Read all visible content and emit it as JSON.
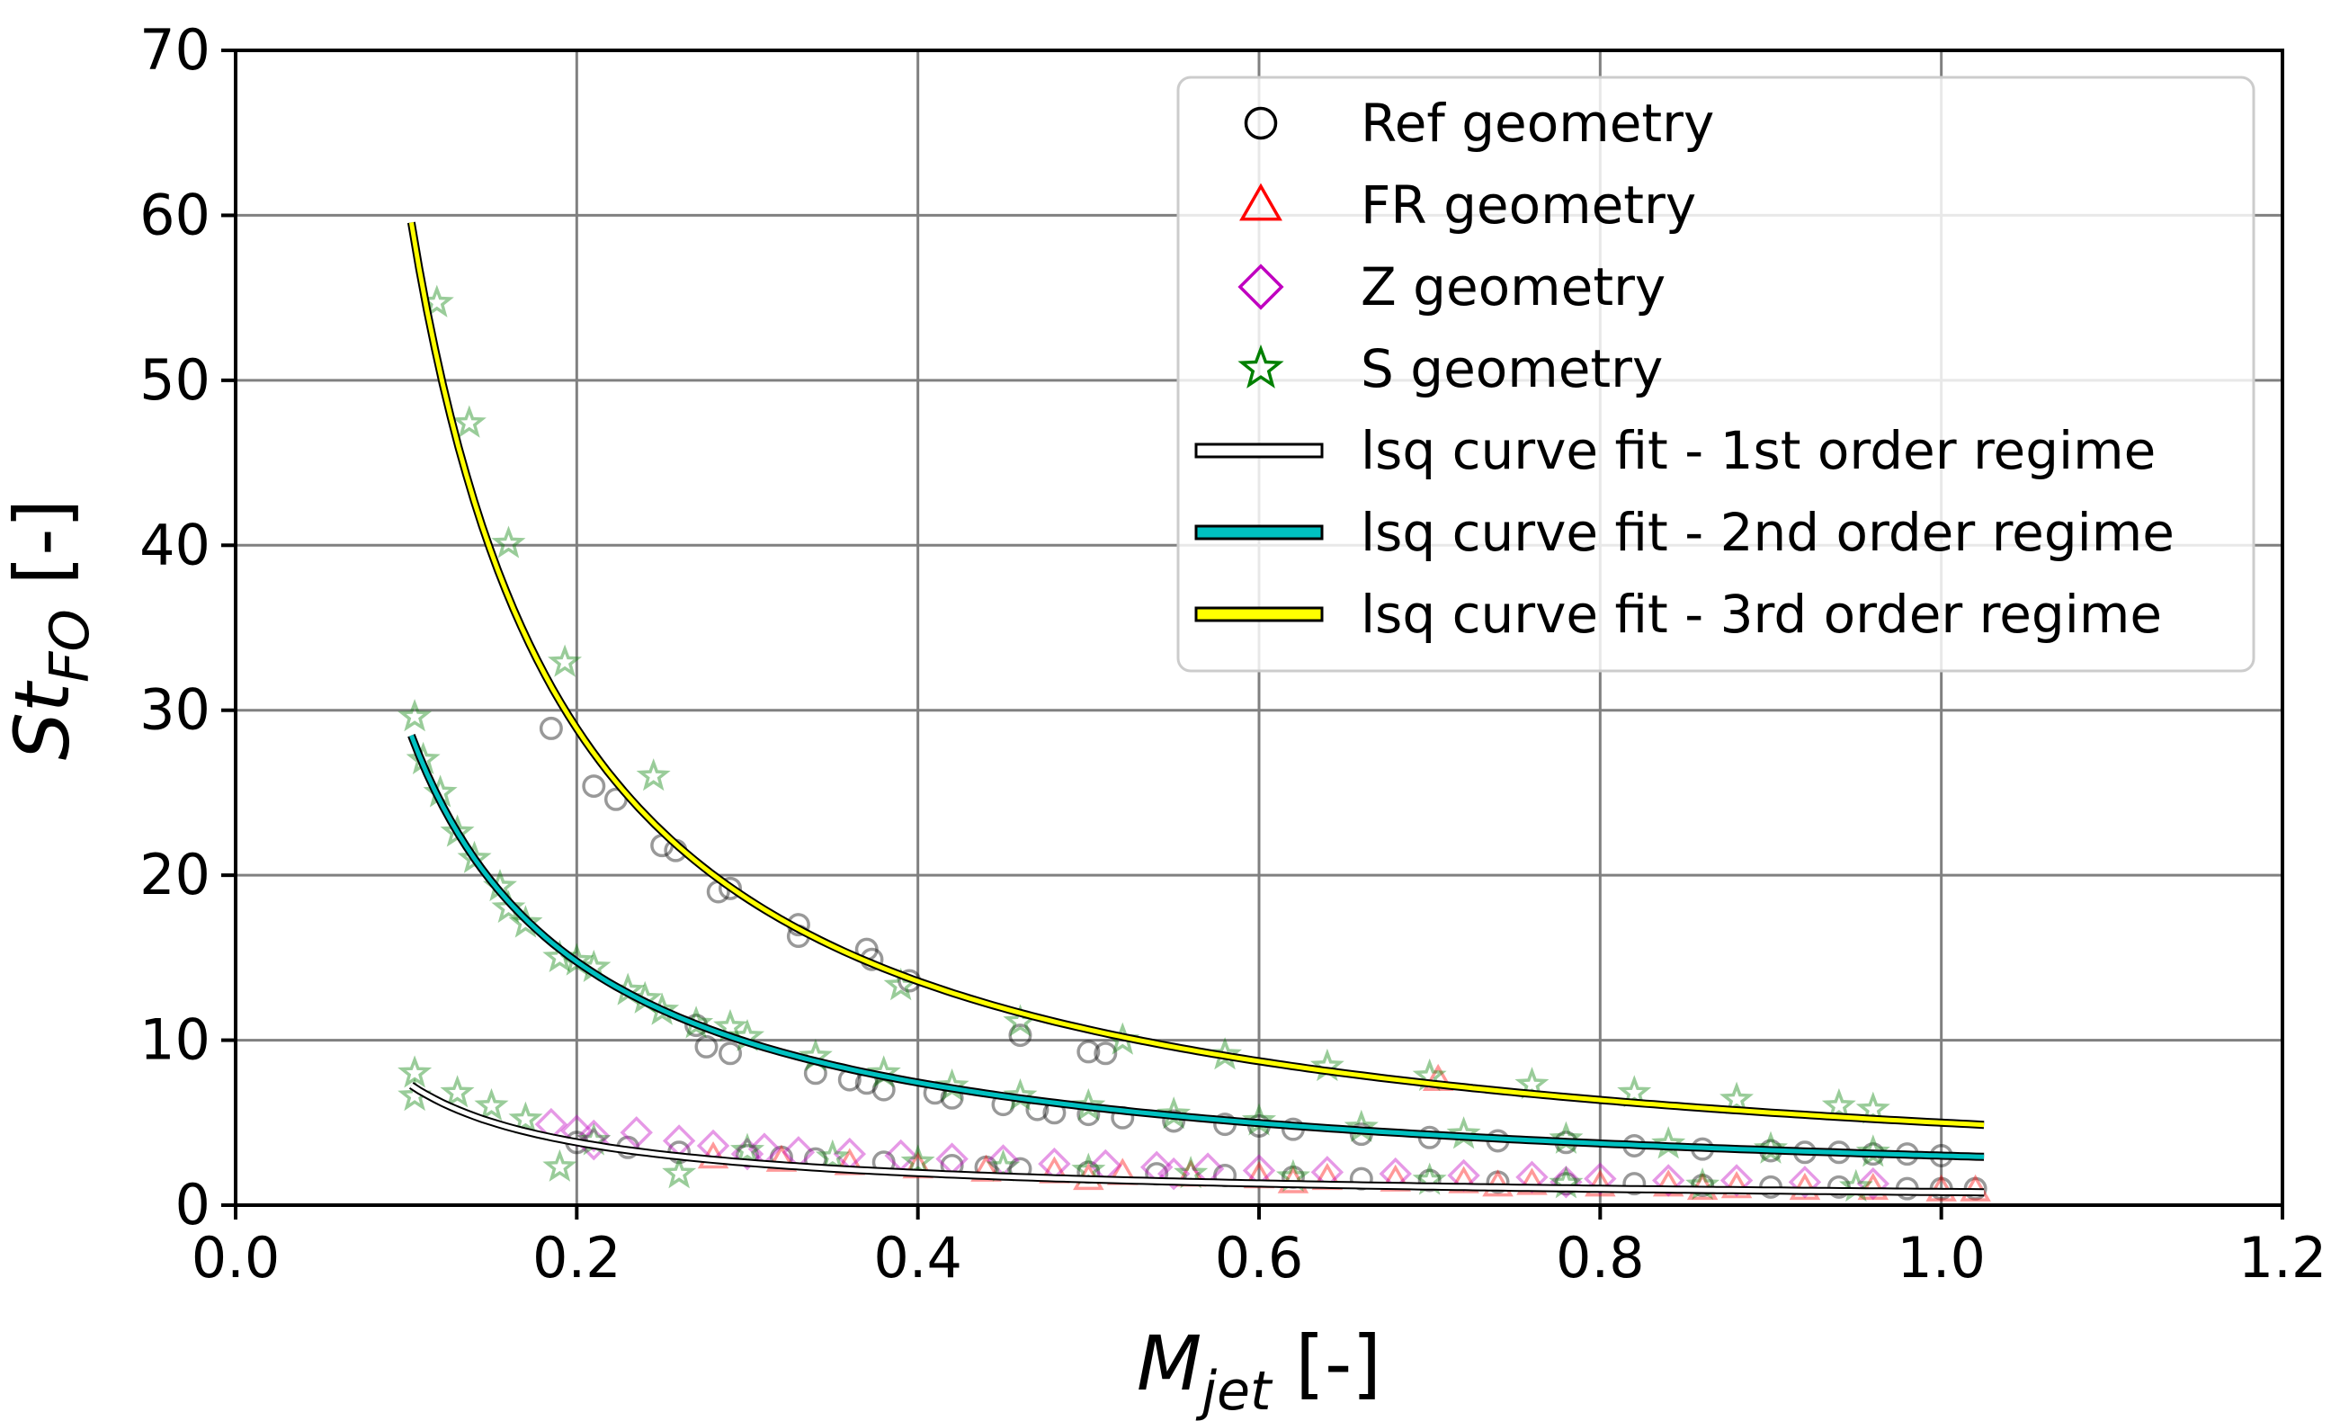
{
  "chart_data": {
    "type": "scatter",
    "title": "",
    "xlabel": {
      "main": "M",
      "sub": "jet",
      "unit": " [-]"
    },
    "ylabel": {
      "main": "St",
      "sub": "FO",
      "unit": " [-]"
    },
    "xlim": [
      0.0,
      1.2
    ],
    "ylim": [
      0,
      70
    ],
    "xticks": [
      0.0,
      0.2,
      0.4,
      0.6,
      0.8,
      1.0,
      1.2
    ],
    "xtick_labels": [
      "0.0",
      "0.2",
      "0.4",
      "0.6",
      "0.8",
      "1.0",
      "1.2"
    ],
    "yticks": [
      0,
      10,
      20,
      30,
      40,
      50,
      60,
      70
    ],
    "ytick_labels": [
      "0",
      "10",
      "20",
      "30",
      "40",
      "50",
      "60",
      "70"
    ],
    "grid": true,
    "legend_position": "top-right",
    "scatter_series": [
      {
        "name": "Ref geometry",
        "marker": "circle",
        "color": "#000000",
        "points": [
          [
            0.185,
            28.9
          ],
          [
            0.21,
            25.4
          ],
          [
            0.223,
            24.6
          ],
          [
            0.25,
            21.8
          ],
          [
            0.258,
            21.5
          ],
          [
            0.283,
            19.0
          ],
          [
            0.29,
            19.2
          ],
          [
            0.33,
            17.0
          ],
          [
            0.33,
            16.3
          ],
          [
            0.37,
            15.5
          ],
          [
            0.373,
            14.9
          ],
          [
            0.395,
            13.6
          ],
          [
            0.46,
            10.3
          ],
          [
            0.5,
            9.3
          ],
          [
            0.51,
            9.2
          ],
          [
            0.276,
            9.6
          ],
          [
            0.29,
            9.2
          ],
          [
            0.27,
            10.9
          ],
          [
            0.34,
            8.0
          ],
          [
            0.36,
            7.6
          ],
          [
            0.37,
            7.4
          ],
          [
            0.38,
            7.0
          ],
          [
            0.41,
            6.8
          ],
          [
            0.42,
            6.5
          ],
          [
            0.45,
            6.1
          ],
          [
            0.47,
            5.8
          ],
          [
            0.48,
            5.6
          ],
          [
            0.5,
            5.5
          ],
          [
            0.52,
            5.3
          ],
          [
            0.55,
            5.1
          ],
          [
            0.58,
            4.9
          ],
          [
            0.6,
            4.8
          ],
          [
            0.62,
            4.6
          ],
          [
            0.66,
            4.3
          ],
          [
            0.7,
            4.1
          ],
          [
            0.74,
            3.9
          ],
          [
            0.78,
            3.8
          ],
          [
            0.82,
            3.6
          ],
          [
            0.86,
            3.4
          ],
          [
            0.9,
            3.3
          ],
          [
            0.94,
            3.2
          ],
          [
            0.98,
            3.1
          ],
          [
            1.0,
            3.0
          ],
          [
            0.96,
            3.1
          ],
          [
            0.92,
            3.2
          ],
          [
            0.23,
            3.5
          ],
          [
            0.26,
            3.2
          ],
          [
            0.3,
            3.0
          ],
          [
            0.34,
            2.8
          ],
          [
            0.38,
            2.6
          ],
          [
            0.42,
            2.4
          ],
          [
            0.46,
            2.2
          ],
          [
            0.5,
            2.0
          ],
          [
            0.54,
            1.9
          ],
          [
            0.58,
            1.8
          ],
          [
            0.62,
            1.7
          ],
          [
            0.66,
            1.6
          ],
          [
            0.7,
            1.5
          ],
          [
            0.74,
            1.4
          ],
          [
            0.78,
            1.3
          ],
          [
            0.82,
            1.3
          ],
          [
            0.86,
            1.2
          ],
          [
            0.9,
            1.1
          ],
          [
            0.94,
            1.1
          ],
          [
            0.98,
            1.0
          ],
          [
            1.0,
            1.0
          ],
          [
            1.02,
            1.0
          ],
          [
            0.2,
            3.8
          ],
          [
            0.32,
            2.9
          ],
          [
            0.44,
            2.3
          ]
        ]
      },
      {
        "name": "FR geometry",
        "marker": "triangle",
        "color": "#ff0000",
        "points": [
          [
            0.705,
            7.6
          ],
          [
            0.28,
            2.9
          ],
          [
            0.32,
            2.7
          ],
          [
            0.36,
            2.5
          ],
          [
            0.4,
            2.3
          ],
          [
            0.44,
            2.1
          ],
          [
            0.48,
            2.0
          ],
          [
            0.52,
            1.9
          ],
          [
            0.56,
            1.8
          ],
          [
            0.6,
            1.7
          ],
          [
            0.64,
            1.6
          ],
          [
            0.68,
            1.5
          ],
          [
            0.72,
            1.4
          ],
          [
            0.76,
            1.3
          ],
          [
            0.8,
            1.2
          ],
          [
            0.84,
            1.2
          ],
          [
            0.88,
            1.1
          ],
          [
            0.92,
            1.0
          ],
          [
            0.96,
            1.0
          ],
          [
            1.0,
            0.9
          ],
          [
            1.02,
            0.9
          ],
          [
            0.5,
            1.6
          ],
          [
            0.62,
            1.4
          ],
          [
            0.74,
            1.2
          ],
          [
            0.86,
            1.0
          ]
        ]
      },
      {
        "name": "Z geometry",
        "marker": "diamond",
        "color": "#c000c0",
        "points": [
          [
            0.185,
            4.9
          ],
          [
            0.2,
            4.5
          ],
          [
            0.21,
            4.2
          ],
          [
            0.235,
            4.4
          ],
          [
            0.26,
            3.9
          ],
          [
            0.28,
            3.6
          ],
          [
            0.31,
            3.4
          ],
          [
            0.33,
            3.2
          ],
          [
            0.36,
            3.1
          ],
          [
            0.39,
            3.0
          ],
          [
            0.42,
            2.8
          ],
          [
            0.45,
            2.7
          ],
          [
            0.48,
            2.5
          ],
          [
            0.51,
            2.4
          ],
          [
            0.54,
            2.3
          ],
          [
            0.57,
            2.2
          ],
          [
            0.6,
            2.1
          ],
          [
            0.64,
            2.0
          ],
          [
            0.68,
            1.9
          ],
          [
            0.72,
            1.8
          ],
          [
            0.76,
            1.7
          ],
          [
            0.8,
            1.6
          ],
          [
            0.84,
            1.5
          ],
          [
            0.88,
            1.5
          ],
          [
            0.92,
            1.4
          ],
          [
            0.96,
            1.3
          ],
          [
            0.21,
            3.7
          ],
          [
            0.3,
            3.1
          ],
          [
            0.55,
            1.9
          ],
          [
            0.78,
            1.4
          ]
        ]
      },
      {
        "name": "S geometry",
        "marker": "star",
        "color": "#008000",
        "points": [
          [
            0.118,
            54.7
          ],
          [
            0.137,
            47.4
          ],
          [
            0.16,
            40.1
          ],
          [
            0.193,
            32.9
          ],
          [
            0.245,
            26.0
          ],
          [
            0.39,
            13.3
          ],
          [
            0.46,
            11.1
          ],
          [
            0.52,
            10.0
          ],
          [
            0.58,
            9.1
          ],
          [
            0.64,
            8.4
          ],
          [
            0.7,
            7.8
          ],
          [
            0.76,
            7.3
          ],
          [
            0.82,
            6.8
          ],
          [
            0.88,
            6.4
          ],
          [
            0.94,
            6.0
          ],
          [
            0.96,
            5.8
          ],
          [
            0.105,
            29.6
          ],
          [
            0.11,
            27.0
          ],
          [
            0.12,
            25.0
          ],
          [
            0.13,
            22.6
          ],
          [
            0.14,
            21.0
          ],
          [
            0.155,
            19.3
          ],
          [
            0.17,
            17.1
          ],
          [
            0.19,
            15.0
          ],
          [
            0.21,
            14.4
          ],
          [
            0.23,
            13.0
          ],
          [
            0.25,
            11.8
          ],
          [
            0.27,
            11.0
          ],
          [
            0.3,
            10.2
          ],
          [
            0.34,
            9.0
          ],
          [
            0.38,
            8.0
          ],
          [
            0.42,
            7.2
          ],
          [
            0.46,
            6.6
          ],
          [
            0.5,
            6.0
          ],
          [
            0.55,
            5.5
          ],
          [
            0.6,
            5.1
          ],
          [
            0.66,
            4.7
          ],
          [
            0.72,
            4.3
          ],
          [
            0.78,
            4.0
          ],
          [
            0.84,
            3.7
          ],
          [
            0.9,
            3.4
          ],
          [
            0.96,
            3.2
          ],
          [
            0.105,
            8.0
          ],
          [
            0.105,
            6.6
          ],
          [
            0.13,
            6.8
          ],
          [
            0.15,
            6.0
          ],
          [
            0.17,
            5.2
          ],
          [
            0.19,
            2.3
          ],
          [
            0.21,
            3.9
          ],
          [
            0.26,
            1.9
          ],
          [
            0.3,
            3.3
          ],
          [
            0.35,
            2.9
          ],
          [
            0.4,
            2.6
          ],
          [
            0.45,
            2.3
          ],
          [
            0.5,
            2.1
          ],
          [
            0.56,
            1.9
          ],
          [
            0.62,
            1.7
          ],
          [
            0.7,
            1.5
          ],
          [
            0.78,
            1.3
          ],
          [
            0.86,
            1.2
          ],
          [
            0.95,
            1.1
          ],
          [
            0.16,
            18.0
          ],
          [
            0.2,
            14.8
          ],
          [
            0.24,
            12.5
          ],
          [
            0.29,
            10.8
          ]
        ]
      }
    ],
    "fit_series": [
      {
        "name": "lsq curve fit - 1st order regime",
        "color": "#ffffff",
        "edge_color": "#000000",
        "a": 0.8,
        "b": -0.97,
        "x_start": 0.103,
        "x_end": 1.025
      },
      {
        "name": "lsq curve fit - 2nd order regime",
        "color": "#00c0c0",
        "edge_color": "#000000",
        "a": 3.0,
        "b": -0.99,
        "x_start": 0.103,
        "x_end": 1.025
      },
      {
        "name": "lsq curve fit - 3rd order regime",
        "color": "#ffff00",
        "edge_color": "#000000",
        "a": 5.0,
        "b": -1.09,
        "x_start": 0.103,
        "x_end": 1.025
      }
    ]
  },
  "legend": {
    "items": [
      {
        "label": "Ref geometry",
        "marker": "circle",
        "color": "#000000"
      },
      {
        "label": "FR geometry",
        "marker": "triangle",
        "color": "#ff0000"
      },
      {
        "label": "Z geometry",
        "marker": "diamond",
        "color": "#c000c0"
      },
      {
        "label": "S geometry",
        "marker": "star",
        "color": "#008000"
      },
      {
        "label": "lsq curve fit - 1st order regime",
        "marker": "line",
        "color": "#ffffff"
      },
      {
        "label": "lsq curve fit - 2nd order regime",
        "marker": "line",
        "color": "#00c0c0"
      },
      {
        "label": "lsq curve fit - 3rd order regime",
        "marker": "line",
        "color": "#ffff00"
      }
    ]
  }
}
